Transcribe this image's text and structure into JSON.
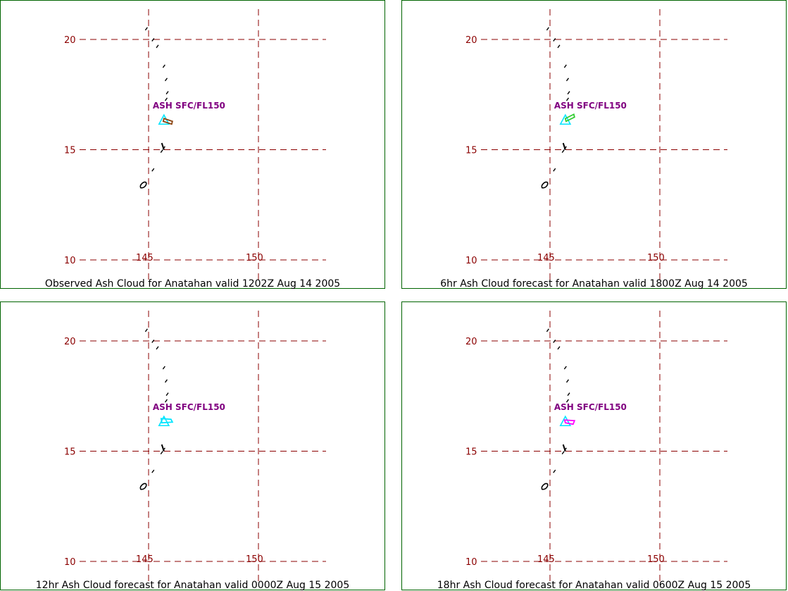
{
  "map": {
    "lat_ticks": [
      "20",
      "15",
      "10"
    ],
    "lon_ticks": [
      "145",
      "150"
    ],
    "colors": {
      "grid": "#8b0000",
      "border": "#006400",
      "label": "#800080",
      "volcano": "#00e5ff"
    }
  },
  "panels": [
    {
      "caption": "Observed Ash Cloud for Anatahan valid 1202Z Aug 14 2005",
      "ash_label": "ASH SFC/FL150",
      "cloud_color": "#8b4513"
    },
    {
      "caption": "6hr Ash Cloud forecast for Anatahan valid 1800Z Aug 14 2005",
      "ash_label": "ASH SFC/FL150",
      "cloud_color": "#32cd32"
    },
    {
      "caption": "12hr Ash Cloud forecast for Anatahan valid 0000Z Aug 15 2005",
      "ash_label": "ASH SFC/FL150",
      "cloud_color": "#00e5ff"
    },
    {
      "caption": "18hr Ash Cloud forecast for Anatahan valid 0600Z Aug 15 2005",
      "ash_label": "ASH SFC/FL150",
      "cloud_color": "#ff00ff"
    }
  ]
}
